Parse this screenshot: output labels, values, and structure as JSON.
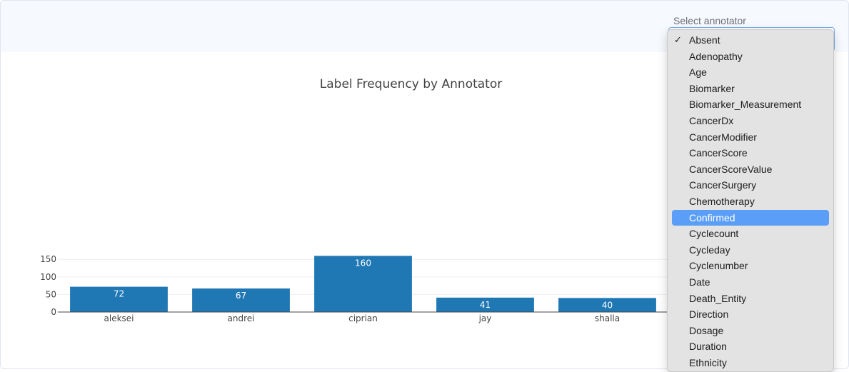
{
  "filter": {
    "label": "Select annotator",
    "options": [
      {
        "label": "Absent",
        "checked": true,
        "highlighted": false
      },
      {
        "label": "Adenopathy",
        "checked": false,
        "highlighted": false
      },
      {
        "label": "Age",
        "checked": false,
        "highlighted": false
      },
      {
        "label": "Biomarker",
        "checked": false,
        "highlighted": false
      },
      {
        "label": "Biomarker_Measurement",
        "checked": false,
        "highlighted": false
      },
      {
        "label": "CancerDx",
        "checked": false,
        "highlighted": false
      },
      {
        "label": "CancerModifier",
        "checked": false,
        "highlighted": false
      },
      {
        "label": "CancerScore",
        "checked": false,
        "highlighted": false
      },
      {
        "label": "CancerScoreValue",
        "checked": false,
        "highlighted": false
      },
      {
        "label": "CancerSurgery",
        "checked": false,
        "highlighted": false
      },
      {
        "label": "Chemotherapy",
        "checked": false,
        "highlighted": false
      },
      {
        "label": "Confirmed",
        "checked": false,
        "highlighted": true
      },
      {
        "label": "Cyclecount",
        "checked": false,
        "highlighted": false
      },
      {
        "label": "Cycleday",
        "checked": false,
        "highlighted": false
      },
      {
        "label": "Cyclenumber",
        "checked": false,
        "highlighted": false
      },
      {
        "label": "Date",
        "checked": false,
        "highlighted": false
      },
      {
        "label": "Death_Entity",
        "checked": false,
        "highlighted": false
      },
      {
        "label": "Direction",
        "checked": false,
        "highlighted": false
      },
      {
        "label": "Dosage",
        "checked": false,
        "highlighted": false
      },
      {
        "label": "Duration",
        "checked": false,
        "highlighted": false
      },
      {
        "label": "Ethnicity",
        "checked": false,
        "highlighted": false
      }
    ],
    "check_glyph": "✓"
  },
  "chart_data": {
    "type": "bar",
    "title": "Label Frequency by Annotator",
    "categories": [
      "aleksei",
      "andrei",
      "ciprian",
      "jay",
      "shalla"
    ],
    "values": [
      72,
      67,
      160,
      41,
      40
    ],
    "data_labels": [
      "72",
      "67",
      "160",
      "41",
      "40"
    ],
    "yticks": [
      0,
      50,
      100,
      150
    ],
    "ylim": [
      0,
      175
    ],
    "grid": true,
    "colors": {
      "bar": "#1f77b4",
      "grid": "#eeeeee",
      "axis": "#444444"
    }
  }
}
